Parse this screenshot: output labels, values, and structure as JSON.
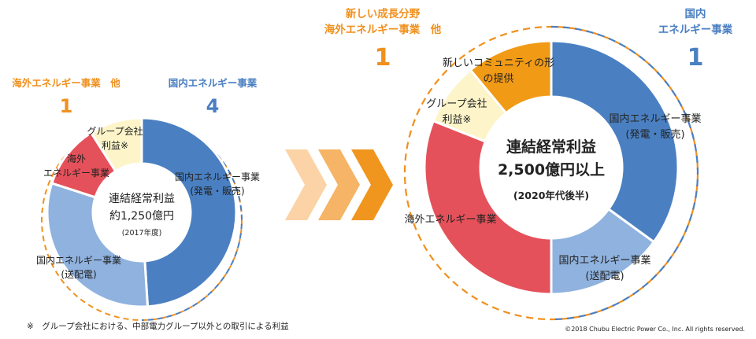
{
  "colors": {
    "domestic_gen": "#4a80c2",
    "domestic_trans": "#8fb2df",
    "overseas": "#e5515a",
    "group": "#fdf5c9",
    "new_fields": "#f19a16",
    "orange_text": "#f0901e",
    "blue_text": "#4a7fc1",
    "arrow_1": "#fbd3a6",
    "arrow_2": "#f6b466",
    "arrow_3": "#f0961e"
  },
  "chart_data": [
    {
      "type": "pie",
      "title": "連結経常利益",
      "amount": "約1,250億円",
      "period": "(2017年度)",
      "left_header": {
        "label": "海外エネルギー事業　他",
        "value": "1"
      },
      "right_header": {
        "label": "国内エネルギー事業",
        "value": "4"
      },
      "slices": [
        {
          "label": "国内エネルギー事業(発電・販売)",
          "line1": "国内エネルギー事業",
          "line2": "(発電・販売)",
          "value": 49
        },
        {
          "label": "国内エネルギー事業(送配電)",
          "line1": "国内エネルギー事業",
          "line2": "(送配電)",
          "value": 31
        },
        {
          "label": "海外エネルギー事業",
          "line1": "海外",
          "line2": "エネルギー事業",
          "value": 11
        },
        {
          "label": "グループ会社利益※",
          "line1": "グループ会社",
          "line2": "利益※",
          "value": 9
        }
      ]
    },
    {
      "type": "pie",
      "title": "連結経常利益",
      "amount": "2,500億円以上",
      "period": "(2020年代後半)",
      "left_header": {
        "line1": "新しい成長分野",
        "line2": "海外エネルギー事業　他",
        "value": "1"
      },
      "right_header": {
        "line1": "国内",
        "line2": "エネルギー事業",
        "value": "1"
      },
      "slices": [
        {
          "label": "国内エネルギー事業(発電・販売)",
          "line1": "国内エネルギー事業",
          "line2": "(発電・販売)",
          "value": 35
        },
        {
          "label": "国内エネルギー事業(送配電)",
          "line1": "国内エネルギー事業",
          "line2": "(送配電)",
          "value": 15
        },
        {
          "label": "海外エネルギー事業",
          "line1": "海外エネルギー事業",
          "line2": "",
          "value": 31
        },
        {
          "label": "グループ会社利益※",
          "line1": "グループ会社",
          "line2": "利益※",
          "value": 8
        },
        {
          "label": "新しいコミュニティの形の提供",
          "line1": "新しいコミュニティの形",
          "line2": "の提供",
          "value": 11
        }
      ]
    }
  ],
  "footnote": "※　グループ会社における、中部電力グループ以外との取引による利益",
  "copyright": "©2018 Chubu Electric Power Co., Inc. All rights reserved."
}
